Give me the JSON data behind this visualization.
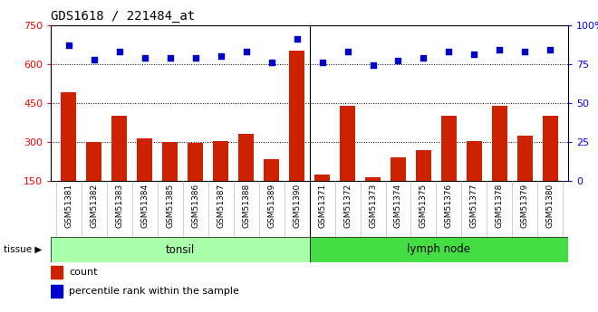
{
  "title": "GDS1618 / 221484_at",
  "samples": [
    "GSM51381",
    "GSM51382",
    "GSM51383",
    "GSM51384",
    "GSM51385",
    "GSM51386",
    "GSM51387",
    "GSM51388",
    "GSM51389",
    "GSM51390",
    "GSM51371",
    "GSM51372",
    "GSM51373",
    "GSM51374",
    "GSM51375",
    "GSM51376",
    "GSM51377",
    "GSM51378",
    "GSM51379",
    "GSM51380"
  ],
  "counts": [
    490,
    300,
    400,
    315,
    300,
    298,
    305,
    330,
    235,
    650,
    175,
    440,
    165,
    240,
    270,
    400,
    305,
    440,
    325,
    400
  ],
  "percentiles": [
    87,
    78,
    83,
    79,
    79,
    79,
    80,
    83,
    76,
    91,
    76,
    83,
    74,
    77,
    79,
    83,
    81,
    84,
    83,
    84
  ],
  "groups": [
    {
      "label": "tonsil",
      "start": 0,
      "end": 10,
      "color": "#aaffaa"
    },
    {
      "label": "lymph node",
      "start": 10,
      "end": 20,
      "color": "#44dd44"
    }
  ],
  "ylim_left": [
    150,
    750
  ],
  "ylim_right": [
    0,
    100
  ],
  "yticks_left": [
    150,
    300,
    450,
    600,
    750
  ],
  "yticks_right": [
    0,
    25,
    50,
    75,
    100
  ],
  "bar_color": "#cc2200",
  "dot_color": "#0000cc",
  "plot_bg": "#ffffff",
  "grid_color": "black",
  "tissue_label": "tissue",
  "legend_count": "count",
  "legend_pct": "percentile rank within the sample",
  "separator": 9.5
}
